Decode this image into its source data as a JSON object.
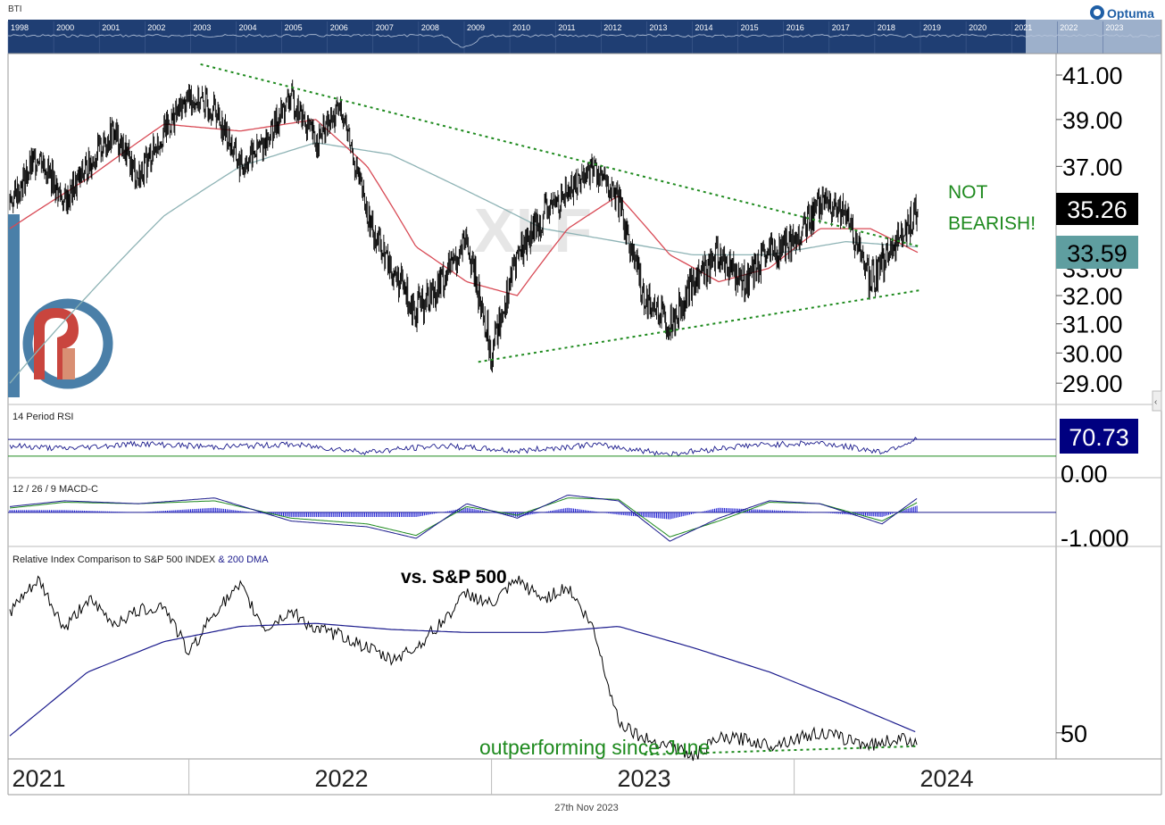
{
  "header": {
    "symbol": "BTI",
    "brand": "Optuma",
    "overview_years": [
      "1998",
      "2000",
      "2001",
      "2002",
      "2003",
      "2004",
      "2005",
      "2006",
      "2007",
      "2008",
      "2009",
      "2010",
      "2011",
      "2012",
      "2013",
      "2014",
      "2015",
      "2016",
      "2017",
      "2018",
      "2019",
      "2020",
      "2021",
      "2022",
      "2023"
    ]
  },
  "watermark": "XLF",
  "footer": {
    "date": "27th Nov 2023"
  },
  "colors": {
    "overview_bg": "#1f3e73",
    "price": "#000000",
    "sma_short": "#d84a55",
    "sma_long": "#8eb3b5",
    "trendline": "#1e8a1e",
    "rsi": "#1a1a8c",
    "macd_hist": "#1a1ad0",
    "rel_ma": "#1a1a8c",
    "last_price_label": "#000000",
    "ma_label": "#5f9ea0",
    "rsi_label": "#000080"
  },
  "chart_data": [
    {
      "type": "line",
      "title": "",
      "x_ticks": [
        "2021",
        "2022",
        "2023",
        "2024"
      ],
      "y_ticks": [
        29,
        30,
        31,
        32,
        33,
        37,
        39,
        41
      ],
      "y_tick_labels": [
        "29.00",
        "30.00",
        "31.00",
        "32.00",
        "33.00",
        "37.00",
        "39.00",
        "41.00"
      ],
      "ylim": [
        28.4,
        42.0
      ],
      "scale": "log",
      "last_value_label": "35.26",
      "ma_value_label": "33.59",
      "annotation": [
        "NOT",
        "BEARISH!"
      ],
      "series": [
        {
          "name": "",
          "style": "price",
          "x": [
            "2020-11-27",
            "2021-01-01",
            "2021-02-01",
            "2021-03-01",
            "2021-04-01",
            "2021-05-01",
            "2021-06-01",
            "2021-07-01",
            "2021-08-01",
            "2021-09-01",
            "2021-10-01",
            "2021-11-01",
            "2021-12-01",
            "2022-01-01",
            "2022-02-01",
            "2022-03-01",
            "2022-04-01",
            "2022-05-01",
            "2022-06-01",
            "2022-07-01",
            "2022-08-01",
            "2022-09-01",
            "2022-10-01",
            "2022-11-01",
            "2022-12-01",
            "2023-01-01",
            "2023-02-01",
            "2023-03-01",
            "2023-04-01",
            "2023-05-01",
            "2023-06-01",
            "2023-07-01",
            "2023-08-01",
            "2023-09-01",
            "2023-10-01",
            "2023-11-01",
            "2023-11-27"
          ],
          "y": [
            35.5,
            37.5,
            35.5,
            37.0,
            38.5,
            36.5,
            38.5,
            40.0,
            39.5,
            37.0,
            38.0,
            40.0,
            38.0,
            39.5,
            35.0,
            33.0,
            31.5,
            32.5,
            34.0,
            30.0,
            33.5,
            35.0,
            36.0,
            37.0,
            35.5,
            32.0,
            31.0,
            32.5,
            33.5,
            32.5,
            33.5,
            34.0,
            35.5,
            35.0,
            32.5,
            34.0,
            35.26
          ]
        },
        {
          "name": "",
          "style": "sma_short",
          "x": [
            "2020-11-27",
            "2021-03-01",
            "2021-06-01",
            "2021-09-01",
            "2021-12-01",
            "2022-02-01",
            "2022-04-01",
            "2022-06-01",
            "2022-08-01",
            "2022-10-01",
            "2022-12-01",
            "2023-02-01",
            "2023-04-01",
            "2023-06-01",
            "2023-08-01",
            "2023-10-01",
            "2023-11-27"
          ],
          "y": [
            34.5,
            36.5,
            38.8,
            38.5,
            39.0,
            37.0,
            33.8,
            32.5,
            32.0,
            34.5,
            35.8,
            33.5,
            32.5,
            33.0,
            34.5,
            34.5,
            33.59
          ]
        },
        {
          "name": "",
          "style": "sma_long",
          "x": [
            "2020-11-27",
            "2021-03-01",
            "2021-06-01",
            "2021-09-01",
            "2021-12-01",
            "2022-03-01",
            "2022-06-01",
            "2022-09-01",
            "2022-12-01",
            "2023-03-01",
            "2023-06-01",
            "2023-09-01",
            "2023-11-27"
          ],
          "y": [
            29.0,
            32.0,
            35.0,
            37.0,
            38.0,
            37.5,
            36.0,
            34.5,
            34.0,
            33.5,
            33.5,
            34.0,
            33.8
          ]
        },
        {
          "name": "",
          "style": "trendline",
          "x": [
            "2021-07-15",
            "2023-12-01"
          ],
          "y": [
            41.5,
            33.8
          ]
        },
        {
          "name": "",
          "style": "trendline",
          "x": [
            "2022-06-15",
            "2023-12-01"
          ],
          "y": [
            29.7,
            32.2
          ]
        }
      ]
    },
    {
      "type": "line",
      "title": "14 Period RSI",
      "y_tick_labels": [
        "0.00"
      ],
      "last_value_label": "70.73",
      "ylim": [
        0,
        100
      ],
      "series": [
        {
          "name": "",
          "style": "rsi",
          "x": [
            "2020-11-27",
            "2021-02-01",
            "2021-05-01",
            "2021-08-01",
            "2021-11-01",
            "2022-02-01",
            "2022-05-01",
            "2022-08-01",
            "2022-11-01",
            "2023-02-01",
            "2023-05-01",
            "2023-08-01",
            "2023-10-15",
            "2023-11-27"
          ],
          "y": [
            55,
            48,
            60,
            52,
            58,
            40,
            55,
            42,
            58,
            35,
            55,
            62,
            40,
            70.73
          ]
        },
        {
          "name": "",
          "style": "rsi_ref",
          "x": [
            "2020-11-27",
            "2023-12-31"
          ],
          "y": [
            70,
            70
          ]
        },
        {
          "name": "",
          "style": "rsi_ref_low",
          "x": [
            "2020-11-27",
            "2023-12-31"
          ],
          "y": [
            30,
            30
          ]
        }
      ]
    },
    {
      "type": "line",
      "title": "12 / 26 / 9 MACD-C",
      "y_tick_labels": [
        "-1.000"
      ],
      "ylim": [
        -1.15,
        0.8
      ],
      "series": [
        {
          "name": "",
          "style": "macd",
          "x": [
            "2020-11-27",
            "2021-02-01",
            "2021-05-01",
            "2021-08-01",
            "2021-11-01",
            "2022-02-01",
            "2022-04-01",
            "2022-06-01",
            "2022-08-01",
            "2022-10-01",
            "2022-12-01",
            "2023-02-01",
            "2023-04-01",
            "2023-06-01",
            "2023-08-01",
            "2023-10-15",
            "2023-11-27"
          ],
          "y": [
            0.2,
            0.4,
            0.3,
            0.5,
            -0.3,
            -0.5,
            -0.9,
            0.3,
            -0.2,
            0.6,
            0.4,
            -1.0,
            -0.2,
            0.4,
            0.3,
            -0.4,
            0.5
          ]
        },
        {
          "name": "",
          "style": "macd_signal",
          "x": [
            "2020-11-27",
            "2021-02-01",
            "2021-05-01",
            "2021-08-01",
            "2021-11-01",
            "2022-02-01",
            "2022-04-01",
            "2022-06-01",
            "2022-08-01",
            "2022-10-01",
            "2022-12-01",
            "2023-02-01",
            "2023-04-01",
            "2023-06-01",
            "2023-08-01",
            "2023-10-15",
            "2023-11-27"
          ],
          "y": [
            0.15,
            0.35,
            0.3,
            0.4,
            -0.2,
            -0.4,
            -0.8,
            0.2,
            -0.1,
            0.5,
            0.45,
            -0.85,
            -0.3,
            0.35,
            0.3,
            -0.3,
            0.35
          ]
        }
      ]
    },
    {
      "type": "line",
      "title": "Relative Index Comparison to S&P 500 INDEX",
      "title_suffix": "& 200 DMA",
      "subtitle": "vs. S&P 500",
      "y_tick_labels": [
        "50"
      ],
      "y_ticks": [
        50
      ],
      "ylim": [
        46,
        78
      ],
      "annotation": "outperforming since June",
      "series": [
        {
          "name": "",
          "style": "relative",
          "x": [
            "2020-11-27",
            "2021-01-01",
            "2021-02-01",
            "2021-03-01",
            "2021-04-01",
            "2021-05-01",
            "2021-06-01",
            "2021-07-01",
            "2021-08-01",
            "2021-09-01",
            "2021-10-01",
            "2021-11-01",
            "2021-12-01",
            "2022-01-01",
            "2022-02-01",
            "2022-03-01",
            "2022-04-01",
            "2022-05-01",
            "2022-06-01",
            "2022-07-01",
            "2022-08-01",
            "2022-09-01",
            "2022-10-01",
            "2022-11-01",
            "2022-12-01",
            "2023-01-01",
            "2023-02-01",
            "2023-03-01",
            "2023-04-01",
            "2023-05-01",
            "2023-06-01",
            "2023-07-01",
            "2023-08-01",
            "2023-09-01",
            "2023-10-01",
            "2023-11-01",
            "2023-11-27"
          ],
          "y": [
            70,
            75,
            67,
            72,
            68,
            70,
            71,
            63,
            70,
            74,
            67,
            70,
            67,
            66,
            64,
            62,
            64,
            68,
            73,
            71,
            75,
            72,
            74,
            67,
            52,
            49,
            48,
            46,
            49,
            49,
            48,
            49,
            50,
            49,
            48,
            49,
            48.8
          ]
        },
        {
          "name": "",
          "style": "rel_ma",
          "x": [
            "2020-11-27",
            "2021-03-01",
            "2021-06-01",
            "2021-09-01",
            "2021-12-01",
            "2022-03-01",
            "2022-06-01",
            "2022-09-01",
            "2022-12-01",
            "2023-03-01",
            "2023-06-01",
            "2023-09-01",
            "2023-11-27"
          ],
          "y": [
            49.5,
            60,
            65,
            67.5,
            68,
            67,
            66.5,
            66.5,
            67.5,
            64,
            60,
            55,
            50
          ]
        },
        {
          "name": "",
          "style": "trendline",
          "x": [
            "2023-01-01",
            "2023-11-27"
          ],
          "y": [
            46.4,
            47.8
          ]
        }
      ]
    }
  ]
}
